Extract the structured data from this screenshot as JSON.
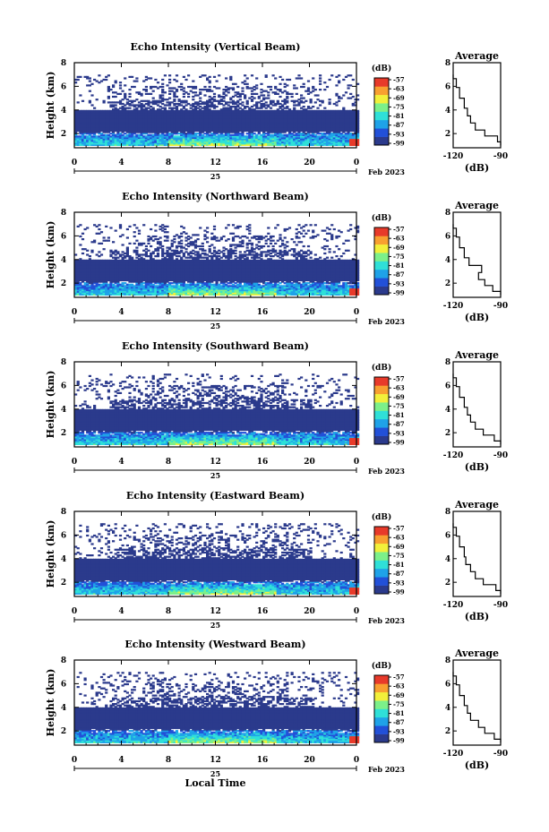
{
  "figure": {
    "date_label": "Feb 2023",
    "day_label": "25",
    "xlabel": "Local Time",
    "ylabel": "Height (km)",
    "colorbar_unit": "(dB)",
    "colorbar_ticks": [
      "-57",
      "-63",
      "-69",
      "-75",
      "-81",
      "-87",
      "-93",
      "-99"
    ],
    "colorbar_colors": [
      "#2b3a8c",
      "#2250d8",
      "#1fa2e8",
      "#2fe0d8",
      "#7cf08a",
      "#f2f03a",
      "#f8a030",
      "#e83a2a"
    ],
    "profile_title": "Average",
    "profile_xlabel": "(dB)",
    "profile_xticks": [
      "-120",
      "-90"
    ],
    "profile_yticks": [
      "2",
      "4",
      "6",
      "8"
    ],
    "main_xticks": [
      "0",
      "4",
      "8",
      "12",
      "16",
      "20",
      "0"
    ],
    "main_yticks": [
      "2",
      "4",
      "6",
      "8"
    ]
  },
  "chart_data": [
    {
      "type": "heatmap",
      "title": "Echo Intensity (Vertical Beam)",
      "x_unit": "local time (h)",
      "xlim": [
        0,
        24
      ],
      "ylim": [
        0.8,
        8
      ],
      "colorbar_range_db": [
        -99,
        -57
      ],
      "layers": [
        {
          "height_km": [
            1.0,
            2.0
          ],
          "level_db": -87
        },
        {
          "height_km": [
            2.0,
            4.0
          ],
          "level_db": -97
        },
        {
          "height_km": [
            4.2,
            6.8
          ],
          "level_db": -98,
          "coverage": "sparse"
        }
      ],
      "profile": {
        "title": "Average",
        "xlim": [
          -120,
          -90
        ],
        "ylim": [
          0.8,
          8
        ],
        "x_db": [
          -90,
          -92,
          -100,
          -106,
          -109,
          -111,
          -113,
          -116,
          -118,
          -120
        ],
        "height_km": [
          1.0,
          1.6,
          2.0,
          2.6,
          3.2,
          3.8,
          4.5,
          5.5,
          6.3,
          7.0
        ]
      }
    },
    {
      "type": "heatmap",
      "title": "Echo Intensity (Northward Beam)",
      "x_unit": "local time (h)",
      "xlim": [
        0,
        24
      ],
      "ylim": [
        0.8,
        8
      ],
      "colorbar_range_db": [
        -99,
        -57
      ],
      "layers": [
        {
          "height_km": [
            1.0,
            2.0
          ],
          "level_db": -87
        },
        {
          "height_km": [
            2.0,
            4.0
          ],
          "level_db": -97
        },
        {
          "height_km": [
            4.2,
            6.8
          ],
          "level_db": -98,
          "coverage": "sparse"
        }
      ],
      "profile": {
        "title": "Average",
        "xlim": [
          -120,
          -90
        ],
        "ylim": [
          0.8,
          8
        ],
        "x_db": [
          -90,
          -95,
          -100,
          -104,
          -102,
          -110,
          -113,
          -116,
          -118,
          -120
        ],
        "height_km": [
          1.0,
          1.6,
          2.0,
          2.6,
          3.2,
          3.8,
          4.5,
          5.5,
          6.3,
          7.0
        ]
      }
    },
    {
      "type": "heatmap",
      "title": "Echo Intensity (Southward Beam)",
      "x_unit": "local time (h)",
      "xlim": [
        0,
        24
      ],
      "ylim": [
        0.8,
        8
      ],
      "colorbar_range_db": [
        -99,
        -57
      ],
      "layers": [
        {
          "height_km": [
            1.0,
            2.0
          ],
          "level_db": -87
        },
        {
          "height_km": [
            2.0,
            4.0
          ],
          "level_db": -97
        },
        {
          "height_km": [
            4.2,
            6.8
          ],
          "level_db": -98,
          "coverage": "sparse"
        }
      ],
      "profile": {
        "title": "Average",
        "xlim": [
          -120,
          -90
        ],
        "ylim": [
          0.8,
          8
        ],
        "x_db": [
          -90,
          -94,
          -101,
          -106,
          -109,
          -111,
          -113,
          -116,
          -118,
          -120
        ],
        "height_km": [
          1.0,
          1.6,
          2.0,
          2.6,
          3.2,
          3.8,
          4.5,
          5.5,
          6.3,
          7.0
        ]
      }
    },
    {
      "type": "heatmap",
      "title": "Echo Intensity (Eastward Beam)",
      "x_unit": "local time (h)",
      "xlim": [
        0,
        24
      ],
      "ylim": [
        0.8,
        8
      ],
      "colorbar_range_db": [
        -99,
        -57
      ],
      "layers": [
        {
          "height_km": [
            1.0,
            2.0
          ],
          "level_db": -87
        },
        {
          "height_km": [
            2.0,
            4.0
          ],
          "level_db": -97
        },
        {
          "height_km": [
            4.2,
            6.8
          ],
          "level_db": -98,
          "coverage": "sparse"
        }
      ],
      "profile": {
        "title": "Average",
        "xlim": [
          -120,
          -90
        ],
        "ylim": [
          0.8,
          8
        ],
        "x_db": [
          -90,
          -93,
          -101,
          -106,
          -109,
          -112,
          -113,
          -116,
          -118,
          -120
        ],
        "height_km": [
          1.0,
          1.6,
          2.0,
          2.6,
          3.2,
          3.8,
          4.5,
          5.5,
          6.3,
          7.0
        ]
      }
    },
    {
      "type": "heatmap",
      "title": "Echo Intensity (Westward Beam)",
      "x_unit": "local time (h)",
      "xlim": [
        0,
        24
      ],
      "ylim": [
        0.8,
        8
      ],
      "colorbar_range_db": [
        -99,
        -57
      ],
      "layers": [
        {
          "height_km": [
            1.0,
            2.0
          ],
          "level_db": -87
        },
        {
          "height_km": [
            2.0,
            4.0
          ],
          "level_db": -97
        },
        {
          "height_km": [
            4.2,
            6.8
          ],
          "level_db": -98,
          "coverage": "sparse"
        }
      ],
      "profile": {
        "title": "Average",
        "xlim": [
          -120,
          -90
        ],
        "ylim": [
          0.8,
          8
        ],
        "x_db": [
          -90,
          -94,
          -100,
          -104,
          -109,
          -111,
          -113,
          -116,
          -118,
          -120
        ],
        "height_km": [
          1.0,
          1.6,
          2.0,
          2.6,
          3.2,
          3.8,
          4.5,
          5.5,
          6.3,
          7.0
        ]
      }
    }
  ]
}
